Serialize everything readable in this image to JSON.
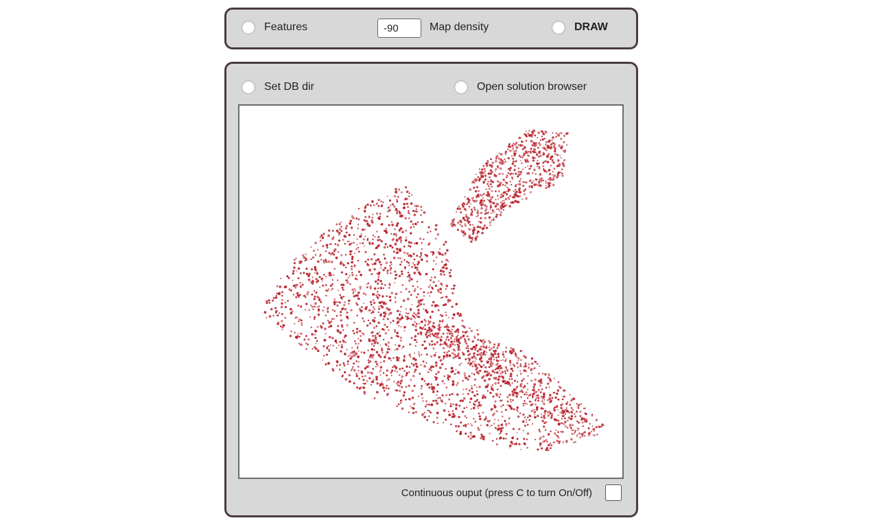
{
  "toolbar": {
    "features_label": "Features",
    "density_value": "-90",
    "density_label": "Map density",
    "draw_label": "DRAW"
  },
  "main": {
    "set_db_label": "Set DB dir",
    "open_browser_label": "Open solution browser",
    "continuous_label": "Continuous ouput (press C to turn On/Off)",
    "continuous_checked": false
  },
  "chart_data": {
    "type": "scatter",
    "point_color": "#b8202a",
    "title": "",
    "xlabel": "",
    "ylabel": "",
    "point_count_approx": 4000
  },
  "colors": {
    "panel_bg": "#d8d8d8",
    "panel_border": "#4a3c3c",
    "points": "#b8202a"
  }
}
